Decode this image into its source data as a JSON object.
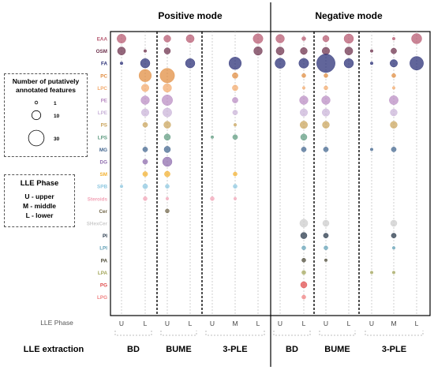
{
  "chart_data": {
    "type": "bubble-matrix",
    "mode_labels": [
      "Positive mode",
      "Negative mode"
    ],
    "phase_axis_label": "LLE Phase",
    "extraction_axis_label": "LLE extraction",
    "columns": [
      {
        "mode": "Positive mode",
        "method": "BD",
        "phase": "U"
      },
      {
        "mode": "Positive mode",
        "method": "BD",
        "phase": "L"
      },
      {
        "mode": "Positive mode",
        "method": "BUME",
        "phase": "U"
      },
      {
        "mode": "Positive mode",
        "method": "BUME",
        "phase": "L"
      },
      {
        "mode": "Positive mode",
        "method": "3-PLE",
        "phase": "U"
      },
      {
        "mode": "Positive mode",
        "method": "3-PLE",
        "phase": "M"
      },
      {
        "mode": "Positive mode",
        "method": "3-PLE",
        "phase": "L"
      },
      {
        "mode": "Negative mode",
        "method": "BD",
        "phase": "U"
      },
      {
        "mode": "Negative mode",
        "method": "BD",
        "phase": "L"
      },
      {
        "mode": "Negative mode",
        "method": "BUME",
        "phase": "U"
      },
      {
        "mode": "Negative mode",
        "method": "BUME",
        "phase": "L"
      },
      {
        "mode": "Negative mode",
        "method": "3-PLE",
        "phase": "U"
      },
      {
        "mode": "Negative mode",
        "method": "3-PLE",
        "phase": "M"
      },
      {
        "mode": "Negative mode",
        "method": "3-PLE",
        "phase": "L"
      }
    ],
    "extraction_groups": [
      "BD",
      "BUME",
      "3-PLE",
      "BD",
      "BUME",
      "3-PLE"
    ],
    "classes": [
      {
        "name": "EAA",
        "color": "#b5566e",
        "values": [
          10,
          0,
          6,
          8,
          0,
          0,
          12,
          9,
          2,
          5,
          11,
          0,
          1,
          13
        ]
      },
      {
        "name": "OSM",
        "color": "#6b2e4a",
        "values": [
          8,
          1,
          5,
          0,
          0,
          0,
          9,
          8,
          6,
          7,
          8,
          1,
          4,
          0
        ]
      },
      {
        "name": "FA",
        "color": "#242a73",
        "values": [
          1,
          11,
          0,
          11,
          0,
          19,
          0,
          13,
          12,
          42,
          11,
          1,
          7,
          23
        ]
      },
      {
        "name": "PC",
        "color": "#e08a3c",
        "values": [
          0,
          19,
          26,
          0,
          0,
          4,
          0,
          0,
          2,
          2,
          0,
          0,
          2,
          0
        ]
      },
      {
        "name": "LPC",
        "color": "#f2a96b",
        "values": [
          0,
          7,
          9,
          0,
          0,
          4,
          0,
          0,
          1,
          2,
          0,
          0,
          1,
          0
        ]
      },
      {
        "name": "PE",
        "color": "#b88bc2",
        "values": [
          0,
          9,
          14,
          0,
          0,
          4,
          0,
          0,
          9,
          9,
          0,
          0,
          10,
          0
        ]
      },
      {
        "name": "LPE",
        "color": "#c9b3d8",
        "values": [
          0,
          7,
          10,
          0,
          0,
          3,
          0,
          0,
          7,
          7,
          0,
          0,
          6,
          0
        ]
      },
      {
        "name": "PS",
        "color": "#c9a35a",
        "values": [
          0,
          3,
          6,
          0,
          0,
          1,
          0,
          0,
          7,
          6,
          0,
          0,
          6,
          0
        ]
      },
      {
        "name": "LPS",
        "color": "#5e9b80",
        "values": [
          0,
          0,
          5,
          0,
          1,
          3,
          0,
          0,
          5,
          0,
          0,
          0,
          0,
          0
        ]
      },
      {
        "name": "MG",
        "color": "#40648e",
        "values": [
          0,
          3,
          5,
          0,
          0,
          0,
          0,
          0,
          3,
          3,
          0,
          1,
          3,
          0
        ]
      },
      {
        "name": "DG",
        "color": "#8c6aac",
        "values": [
          0,
          3,
          11,
          0,
          0,
          0,
          0,
          0,
          0,
          0,
          0,
          0,
          0,
          0
        ]
      },
      {
        "name": "SM",
        "color": "#f2b02e",
        "values": [
          0,
          3,
          4,
          0,
          0,
          2,
          0,
          0,
          0,
          0,
          0,
          0,
          0,
          0
        ]
      },
      {
        "name": "SPB",
        "color": "#8cc7e0",
        "values": [
          1,
          3,
          2,
          0,
          0,
          2,
          0,
          0,
          0,
          0,
          0,
          0,
          0,
          0
        ]
      },
      {
        "name": "Steroids",
        "color": "#f2a2b6",
        "values": [
          0,
          2,
          1,
          0,
          2,
          1,
          0,
          0,
          0,
          0,
          0,
          0,
          0,
          0
        ]
      },
      {
        "name": "Cer",
        "color": "#6f6446",
        "values": [
          0,
          0,
          2,
          0,
          0,
          0,
          0,
          0,
          0,
          0,
          0,
          0,
          0,
          0
        ]
      },
      {
        "name": "SHexCer",
        "color": "#cccccc",
        "values": [
          0,
          0,
          0,
          0,
          0,
          0,
          0,
          0,
          8,
          5,
          0,
          0,
          5,
          0
        ]
      },
      {
        "name": "PI",
        "color": "#243447",
        "values": [
          0,
          0,
          0,
          0,
          0,
          0,
          0,
          0,
          5,
          3,
          0,
          0,
          3,
          0
        ]
      },
      {
        "name": "LPI",
        "color": "#5f9fb5",
        "values": [
          0,
          0,
          0,
          0,
          0,
          0,
          0,
          0,
          2,
          2,
          0,
          0,
          1,
          0
        ]
      },
      {
        "name": "PA",
        "color": "#4a4733",
        "values": [
          0,
          0,
          0,
          0,
          0,
          0,
          0,
          0,
          2,
          1,
          0,
          0,
          0,
          0
        ]
      },
      {
        "name": "LPA",
        "color": "#a3a65a",
        "values": [
          0,
          0,
          0,
          0,
          0,
          0,
          0,
          0,
          2,
          0,
          0,
          1,
          1,
          0
        ]
      },
      {
        "name": "PG",
        "color": "#e04a4a",
        "values": [
          0,
          0,
          0,
          0,
          0,
          0,
          0,
          0,
          5,
          0,
          0,
          0,
          0,
          0
        ]
      },
      {
        "name": "LPG",
        "color": "#f08080",
        "values": [
          0,
          0,
          0,
          0,
          0,
          0,
          0,
          0,
          2,
          0,
          0,
          0,
          0,
          0
        ]
      }
    ],
    "size_legend": {
      "title_line1": "Number of putatively",
      "title_line2": "annotated features",
      "levels": [
        1,
        10,
        30
      ],
      "level_labels": [
        "1",
        "10",
        "30"
      ]
    },
    "phase_legend": {
      "title": "LLE Phase",
      "entries": [
        "U - upper",
        "M - middle",
        "L - lower"
      ]
    }
  }
}
